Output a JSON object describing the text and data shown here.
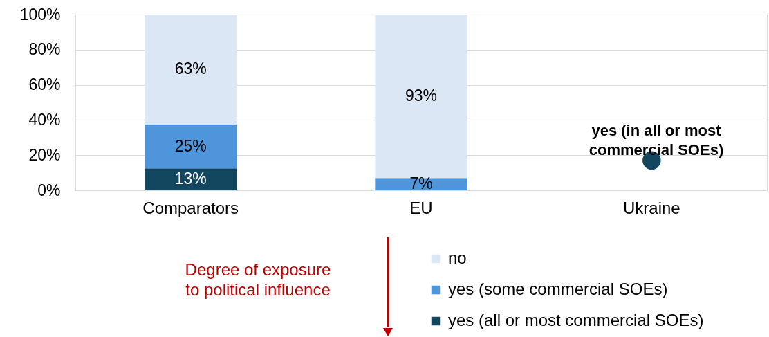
{
  "chart_data": {
    "type": "bar",
    "stacked": true,
    "categories": [
      "Comparators",
      "EU",
      "Ukraine"
    ],
    "series": [
      {
        "name": "yes (all or most commercial SOEs)",
        "color": "#12475f",
        "values": [
          12.5,
          null,
          null
        ],
        "value_labels": [
          "13%",
          null,
          null
        ]
      },
      {
        "name": "yes (some commercial SOEs)",
        "color": "#4f95db",
        "values": [
          25,
          7,
          null
        ],
        "value_labels": [
          "25%",
          "7%",
          null
        ]
      },
      {
        "name": "no",
        "color": "#dbe7f5",
        "values": [
          62.5,
          93,
          null
        ],
        "value_labels": [
          "63%",
          "93%",
          null
        ]
      },
      {
        "type": "scatter",
        "color": "#12475f",
        "values": [
          null,
          null,
          17
        ],
        "marker": "circle"
      }
    ],
    "ylim": [
      0,
      100
    ],
    "yticks": [
      {
        "value": 0,
        "label": "0%"
      },
      {
        "value": 20,
        "label": "20%"
      },
      {
        "value": 40,
        "label": "40%"
      },
      {
        "value": 60,
        "label": "60%"
      },
      {
        "value": 80,
        "label": "80%"
      },
      {
        "value": 100,
        "label": "100%"
      }
    ],
    "grid": "y",
    "legend": "bottom",
    "annotations": [
      "yes (in all or most commercial SOEs)",
      "Degree of exposure to political influence"
    ]
  }
}
